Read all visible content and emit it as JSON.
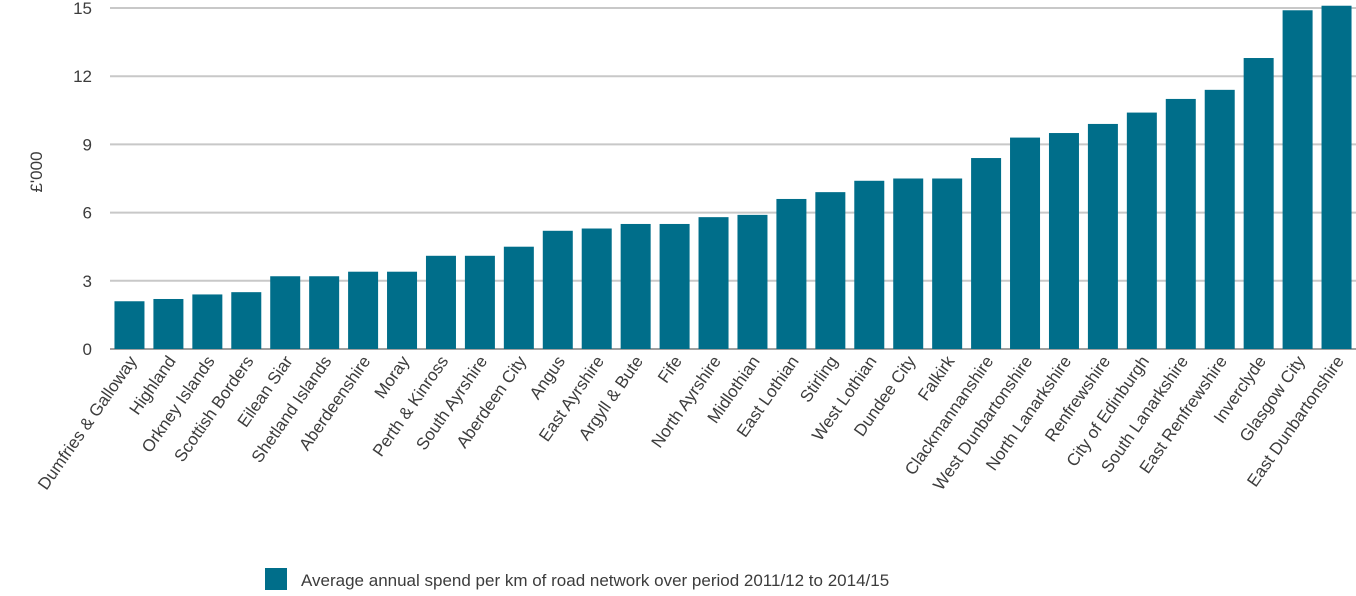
{
  "chart_data": {
    "type": "bar",
    "title": "",
    "xlabel": "",
    "ylabel": "£'000",
    "ylim": [
      0,
      15
    ],
    "yticks": [
      0,
      3,
      6,
      9,
      12,
      15
    ],
    "grid": true,
    "legend_position": "bottom",
    "bar_color": "#006e8a",
    "grid_color": "#c8c8c8",
    "categories": [
      "Dumfries & Galloway",
      "Highland",
      "Orkney Islands",
      "Scottish Borders",
      "Eilean Siar",
      "Shetland Islands",
      "Aberdeenshire",
      "Moray",
      "Perth & Kinross",
      "South Ayrshire",
      "Aberdeen City",
      "Angus",
      "East Ayrshire",
      "Argyll & Bute",
      "Fife",
      "North Ayrshire",
      "Midlothian",
      "East Lothian",
      "Stirling",
      "West Lothian",
      "Dundee City",
      "Falkirk",
      "Clackmannanshire",
      "West Dunbartonshire",
      "North Lanarkshire",
      "Renfrewshire",
      "City of Edinburgh",
      "South Lanarkshire",
      "East Renfrewshire",
      "Inverclyde",
      "Glasgow City",
      "East Dunbartonshire"
    ],
    "series": [
      {
        "name": "Average annual spend per km of road network over period 2011/12 to 2014/15",
        "values": [
          2.1,
          2.2,
          2.4,
          2.5,
          3.2,
          3.2,
          3.4,
          3.4,
          4.1,
          4.1,
          4.5,
          5.2,
          5.3,
          5.5,
          5.5,
          5.8,
          5.9,
          6.6,
          6.9,
          7.4,
          7.5,
          7.5,
          8.4,
          9.3,
          9.5,
          9.9,
          10.4,
          11.0,
          11.4,
          12.8,
          14.9,
          15.1
        ]
      }
    ]
  }
}
